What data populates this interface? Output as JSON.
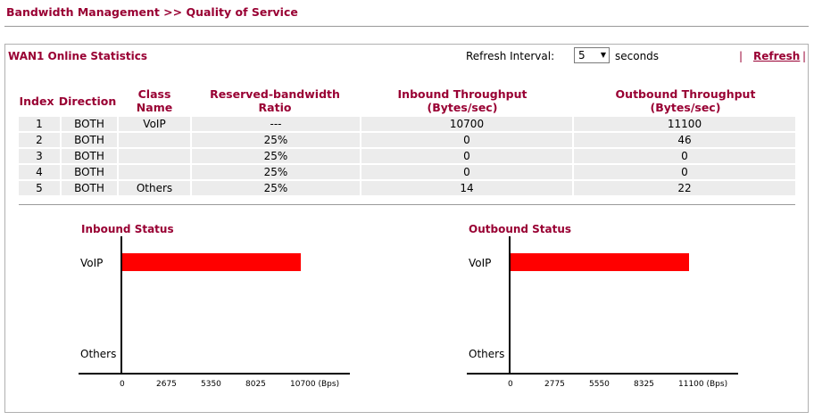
{
  "header": {
    "title": "Bandwidth Management >> Quality of Service"
  },
  "stats": {
    "title": "WAN1 Online Statistics",
    "refresh_interval_label": "Refresh Interval:",
    "refresh_interval_value": "5",
    "seconds_label": "seconds",
    "pipe_left": "|",
    "refresh_label": "Refresh",
    "pipe_right": "|"
  },
  "table": {
    "headers": {
      "index": "Index",
      "direction": "Direction",
      "class_name": "Class Name",
      "ratio": "Reserved-bandwidth Ratio",
      "inbound": "Inbound Throughput (Bytes/sec)",
      "outbound": "Outbound Throughput (Bytes/sec)"
    },
    "rows": [
      {
        "index": "1",
        "direction": "BOTH",
        "class_name": "VoIP",
        "ratio": "---",
        "inbound": "10700",
        "outbound": "11100"
      },
      {
        "index": "2",
        "direction": "BOTH",
        "class_name": "",
        "ratio": "25%",
        "inbound": "0",
        "outbound": "46"
      },
      {
        "index": "3",
        "direction": "BOTH",
        "class_name": "",
        "ratio": "25%",
        "inbound": "0",
        "outbound": "0"
      },
      {
        "index": "4",
        "direction": "BOTH",
        "class_name": "",
        "ratio": "25%",
        "inbound": "0",
        "outbound": "0"
      },
      {
        "index": "5",
        "direction": "BOTH",
        "class_name": "Others",
        "ratio": "25%",
        "inbound": "14",
        "outbound": "22"
      }
    ]
  },
  "chart_data": [
    {
      "type": "bar",
      "orientation": "horizontal",
      "title": "Inbound Status",
      "categories": [
        "VoIP",
        "Others"
      ],
      "values": [
        10700,
        14
      ],
      "x_ticks": [
        "0",
        "2675",
        "5350",
        "8025",
        "10700 (Bps)"
      ],
      "xlim": [
        0,
        10700
      ],
      "bar_color": "#ff0000",
      "grid": false
    },
    {
      "type": "bar",
      "orientation": "horizontal",
      "title": "Outbound Status",
      "categories": [
        "VoIP",
        "Others"
      ],
      "values": [
        11100,
        22
      ],
      "x_ticks": [
        "0",
        "2775",
        "5550",
        "8325",
        "11100 (Bps)"
      ],
      "xlim": [
        0,
        11100
      ],
      "bar_color": "#ff0000",
      "grid": false
    }
  ]
}
